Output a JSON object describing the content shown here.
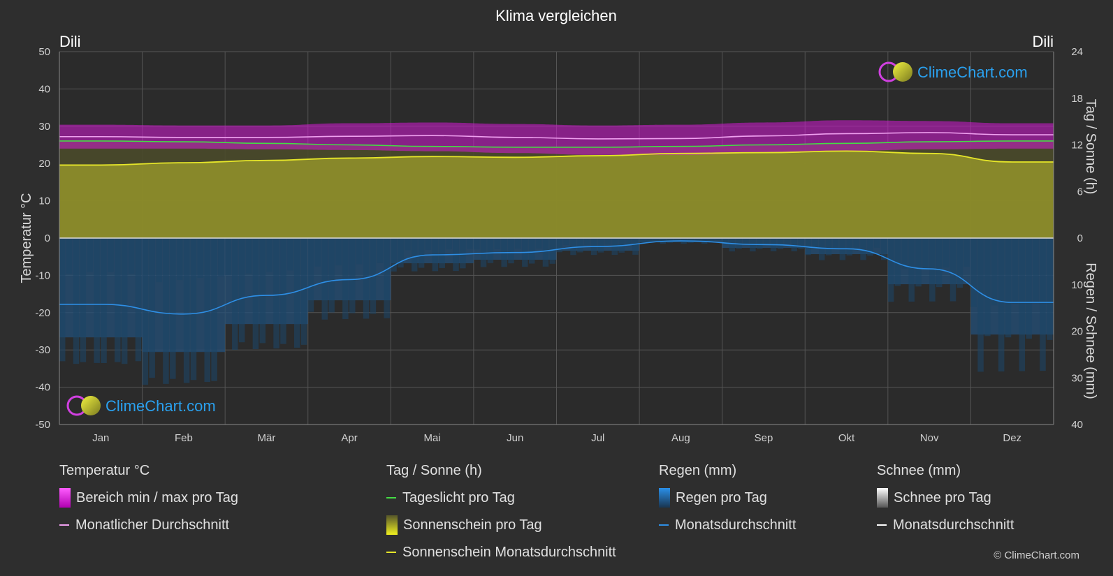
{
  "chart_data": {
    "type": "line",
    "title": "Klima vergleichen",
    "location_left": "Dili",
    "location_right": "Dili",
    "categories": [
      "Jan",
      "Feb",
      "Mär",
      "Apr",
      "Mai",
      "Jun",
      "Jul",
      "Aug",
      "Sep",
      "Okt",
      "Nov",
      "Dez"
    ],
    "y_left": {
      "label": "Temperatur °C",
      "range": [
        -50,
        50
      ],
      "ticks": [
        50,
        40,
        30,
        20,
        10,
        0,
        -10,
        -20,
        -30,
        -40,
        -50
      ]
    },
    "y_right_top": {
      "label": "Tag / Sonne (h)",
      "range": [
        0,
        24
      ],
      "ticks": [
        24,
        18,
        12,
        6,
        0
      ]
    },
    "y_right_bottom": {
      "label": "Regen / Schnee (mm)",
      "range": [
        0,
        40
      ],
      "ticks": [
        0,
        10,
        20,
        30,
        40
      ]
    },
    "grid": true,
    "series": [
      {
        "name": "Bereich min / max pro Tag",
        "unit": "°C",
        "min": [
          24.0,
          24.0,
          23.8,
          23.6,
          23.3,
          22.8,
          22.3,
          22.3,
          22.8,
          23.4,
          23.8,
          24.0
        ],
        "max": [
          30.4,
          30.2,
          30.2,
          30.8,
          31.0,
          30.6,
          30.2,
          30.4,
          31.0,
          31.6,
          31.4,
          30.8
        ]
      },
      {
        "name": "Monatlicher Durchschnitt",
        "unit": "°C",
        "values": [
          27.2,
          27.0,
          27.0,
          27.3,
          27.5,
          27.0,
          26.6,
          26.7,
          27.4,
          28.0,
          28.3,
          27.7
        ]
      },
      {
        "name": "Tageslicht pro Tag",
        "unit": "h",
        "values": [
          12.5,
          12.4,
          12.2,
          12.0,
          11.8,
          11.7,
          11.7,
          11.8,
          12.0,
          12.2,
          12.4,
          12.5
        ]
      },
      {
        "name": "Sonnenschein Monatsdurchschnitt",
        "unit": "h",
        "values": [
          9.4,
          9.7,
          10.0,
          10.3,
          10.5,
          10.4,
          10.6,
          10.9,
          11.0,
          11.2,
          10.9,
          9.8
        ]
      },
      {
        "name": "Regen Monatsdurchschnitt",
        "unit": "mm",
        "values": [
          14.2,
          16.3,
          12.3,
          8.9,
          3.6,
          3.1,
          1.8,
          0.6,
          1.4,
          2.3,
          6.6,
          13.8
        ]
      }
    ]
  },
  "legend": {
    "temp_header": "Temperatur °C",
    "temp_range": "Bereich min / max pro Tag",
    "temp_avg": "Monatlicher Durchschnitt",
    "sun_header": "Tag / Sonne (h)",
    "daylight": "Tageslicht pro Tag",
    "sunshine": "Sonnenschein pro Tag",
    "sunshine_avg": "Sonnenschein Monatsdurchschnitt",
    "rain_header": "Regen (mm)",
    "rain_day": "Regen pro Tag",
    "rain_avg": "Monatsdurchschnitt",
    "snow_header": "Schnee (mm)",
    "snow_day": "Schnee pro Tag",
    "snow_avg": "Monatsdurchschnitt"
  },
  "branding": {
    "logo_text": "ClimeChart.com",
    "copyright": "© ClimeChart.com"
  },
  "colors": {
    "background": "#2e2e2e",
    "temp_range": "#d41ad4",
    "temp_avg": "#f0a0f0",
    "daylight": "#44dd44",
    "sunshine_fill": "#8e8e2a",
    "sunshine_avg": "#e6e629",
    "rain_fill": "#1f5f8f",
    "rain_avg": "#2e8fe6",
    "logo_text": "#2aa0ee"
  }
}
